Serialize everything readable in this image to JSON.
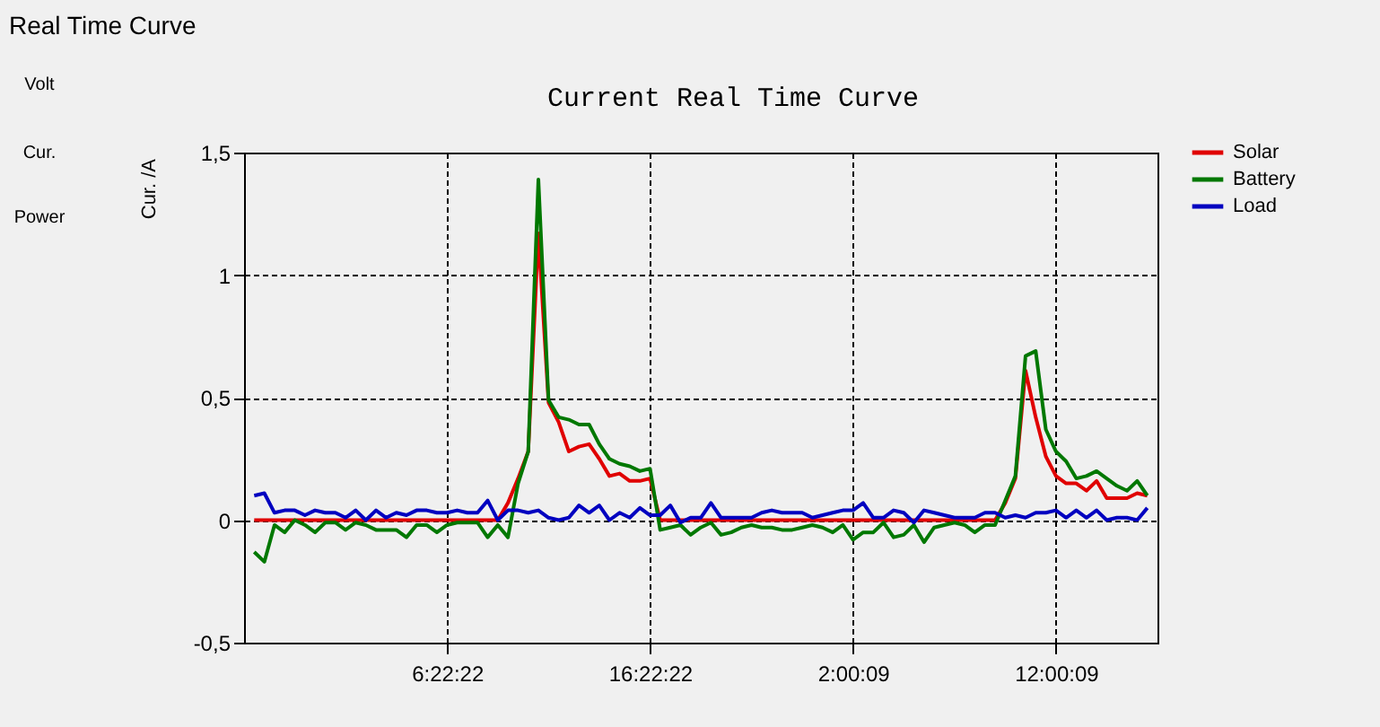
{
  "chart_data": {
    "type": "line",
    "title": "Current Real Time Curve",
    "ylabel": "Cur. /A",
    "annotations": [
      "Real Time Curve",
      "Volt",
      "Cur.",
      "Power"
    ],
    "categories": [
      null,
      null,
      null,
      null,
      null,
      null,
      null,
      null,
      null,
      null,
      null,
      null,
      null,
      null,
      null,
      null,
      null,
      null,
      null,
      "6:22:22",
      null,
      null,
      null,
      null,
      null,
      null,
      null,
      null,
      null,
      null,
      null,
      null,
      null,
      null,
      null,
      null,
      null,
      null,
      null,
      "16:22:22",
      null,
      null,
      null,
      null,
      null,
      null,
      null,
      null,
      null,
      null,
      null,
      null,
      null,
      null,
      null,
      null,
      null,
      null,
      null,
      "2:00:09",
      null,
      null,
      null,
      null,
      null,
      null,
      null,
      null,
      null,
      null,
      null,
      null,
      null,
      null,
      null,
      null,
      null,
      null,
      null,
      "12:00:09",
      null,
      null,
      null,
      null,
      null,
      null,
      null,
      null,
      null
    ],
    "ylim": [
      -0.5,
      1.5
    ],
    "yticks": [
      {
        "value": -0.5,
        "label": "-0,5"
      },
      0,
      {
        "value": 0.5,
        "label": "0,5"
      },
      1,
      {
        "value": 1.5,
        "label": "1,5"
      }
    ],
    "grid": true,
    "legend": "top right",
    "line_style": "solid",
    "marker": "none",
    "series": [
      {
        "name": "Solar",
        "color": "#e00000",
        "values": [
          0,
          0,
          0,
          0,
          0,
          0,
          0,
          0,
          0,
          0,
          0,
          0,
          0,
          0,
          0,
          0,
          0,
          0,
          0,
          0,
          0,
          0,
          0,
          0,
          0,
          0.07,
          0.17,
          0.28,
          1.17,
          0.48,
          0.4,
          0.28,
          0.3,
          0.31,
          0.25,
          0.18,
          0.19,
          0.16,
          0.16,
          0.17,
          0,
          0,
          0,
          0,
          0,
          0,
          0,
          0,
          0,
          0,
          0,
          0,
          0,
          0,
          0,
          0,
          0,
          0,
          0,
          0,
          0,
          0,
          0,
          0,
          0,
          0,
          0,
          0,
          0,
          0,
          0,
          0,
          0,
          0,
          0.07,
          0.17,
          0.61,
          0.42,
          0.26,
          0.18,
          0.15,
          0.15,
          0.12,
          0.16,
          0.09,
          0.09,
          0.09,
          0.11,
          0.1
        ]
      },
      {
        "name": "Battery",
        "color": "#007800",
        "values": [
          -0.13,
          -0.17,
          -0.02,
          -0.05,
          0,
          -0.02,
          -0.05,
          -0.01,
          -0.01,
          -0.04,
          -0.01,
          -0.02,
          -0.04,
          -0.04,
          -0.04,
          -0.07,
          -0.02,
          -0.02,
          -0.05,
          -0.02,
          -0.01,
          -0.01,
          -0.01,
          -0.07,
          -0.02,
          -0.07,
          0.15,
          0.28,
          1.39,
          0.49,
          0.42,
          0.41,
          0.39,
          0.39,
          0.31,
          0.25,
          0.23,
          0.22,
          0.2,
          0.21,
          -0.04,
          -0.03,
          -0.02,
          -0.06,
          -0.03,
          -0.01,
          -0.06,
          -0.05,
          -0.03,
          -0.02,
          -0.03,
          -0.03,
          -0.04,
          -0.04,
          -0.03,
          -0.02,
          -0.03,
          -0.05,
          -0.02,
          -0.08,
          -0.05,
          -0.05,
          -0.01,
          -0.07,
          -0.06,
          -0.02,
          -0.09,
          -0.03,
          -0.02,
          -0.01,
          -0.02,
          -0.05,
          -0.02,
          -0.02,
          0.08,
          0.18,
          0.67,
          0.69,
          0.37,
          0.28,
          0.24,
          0.17,
          0.18,
          0.2,
          0.17,
          0.14,
          0.12,
          0.16,
          0.1
        ]
      },
      {
        "name": "Load",
        "color": "#0000c0",
        "values": [
          0.1,
          0.11,
          0.03,
          0.04,
          0.04,
          0.02,
          0.04,
          0.03,
          0.03,
          0.01,
          0.04,
          0,
          0.04,
          0.01,
          0.03,
          0.02,
          0.04,
          0.04,
          0.03,
          0.03,
          0.04,
          0.03,
          0.03,
          0.08,
          0,
          0.04,
          0.04,
          0.03,
          0.04,
          0.01,
          0,
          0.01,
          0.06,
          0.03,
          0.06,
          0,
          0.03,
          0.01,
          0.05,
          0.02,
          0.02,
          0.06,
          -0.01,
          0.01,
          0.01,
          0.07,
          0.01,
          0.01,
          0.01,
          0.01,
          0.03,
          0.04,
          0.03,
          0.03,
          0.03,
          0.01,
          0.02,
          0.03,
          0.04,
          0.04,
          0.07,
          0.01,
          0.01,
          0.04,
          0.03,
          -0.01,
          0.04,
          0.03,
          0.02,
          0.01,
          0.01,
          0.01,
          0.03,
          0.03,
          0.01,
          0.02,
          0.01,
          0.03,
          0.03,
          0.04,
          0.01,
          0.04,
          0.01,
          0.04,
          0,
          0.01,
          0.01,
          0,
          0.05
        ]
      }
    ]
  }
}
